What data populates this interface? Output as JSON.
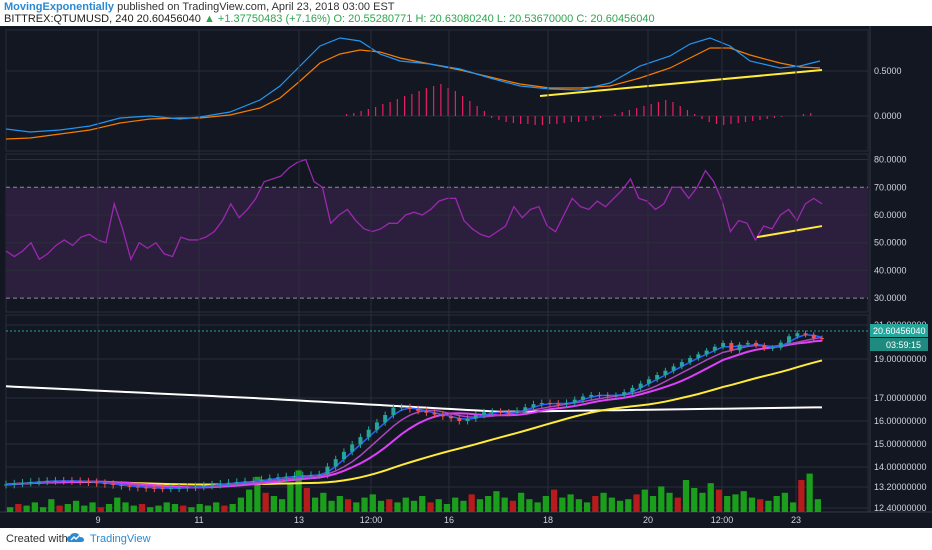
{
  "header": {
    "author": "MovingExponentially",
    "published": "published on TradingView.com, April 23, 2018 03:00 EST",
    "symbol": "BITTREX:QTUMUSD, 240",
    "last": "20.60456040",
    "change": "+1.37750483 (+7.16%)",
    "open": "O: 20.55280771",
    "high": "H: 20.63080240",
    "low": "L: 20.53670000",
    "close": "C: 20.60456040"
  },
  "footer": {
    "created_with": "Created with",
    "brand": "TradingView"
  },
  "colors": {
    "background": "#131722",
    "grid": "#2a2e39",
    "axis_text": "#d1d4dc",
    "macd_line": "#2196f3",
    "signal_line": "#f57c00",
    "histogram": "#e91e63",
    "rsi": "#9c27b0",
    "rsi_band": "#2c1f3d",
    "trendline": "#ffeb3b",
    "up": "#26a69a",
    "down": "#ef5350",
    "ema_fast": "#2962ff",
    "ema_mid": "#ab47bc",
    "ema_slow": "#e040fb",
    "sma_mid": "#ffeb3b",
    "sma_long": "#ffffff",
    "vol_up": "#1b9e1b",
    "vol_down": "#b71c1c",
    "price_badge": "#26a69a"
  },
  "chart_data": [
    {
      "type": "line",
      "panel": "MACD",
      "y_ticks": [
        "0.5000",
        "0.0000"
      ],
      "series": [],
      "note_visible": "MACD line, signal line, histogram and rising trendline"
    },
    {
      "type": "line",
      "panel": "RSI",
      "y_ticks": [
        "80.0000",
        "70.0000",
        "60.0000",
        "50.0000",
        "40.0000",
        "30.0000"
      ],
      "ylim": [
        25,
        82
      ],
      "bands": [
        30,
        70
      ],
      "series": [
        {
          "values": [
            47,
            45,
            47,
            50,
            44,
            46,
            49,
            51,
            49,
            52,
            53,
            51,
            50,
            64,
            55,
            44,
            50,
            48,
            50,
            46,
            45,
            52,
            51,
            51,
            52,
            54,
            58,
            64,
            59,
            62,
            66,
            72,
            73,
            74,
            77,
            79,
            80,
            72,
            70,
            57,
            60,
            62,
            58,
            55,
            54,
            55,
            57,
            57,
            60,
            61,
            60,
            62,
            65,
            66,
            66,
            58,
            55,
            53,
            52,
            54,
            56,
            63,
            59,
            62,
            63,
            56,
            54,
            60,
            66,
            63,
            62,
            65,
            63,
            66,
            69,
            73,
            66,
            65,
            62,
            64,
            70,
            70,
            66,
            70,
            76,
            72,
            65,
            54,
            58,
            57,
            51,
            56,
            55,
            60,
            62,
            58,
            64,
            66,
            64
          ]
        }
      ]
    },
    {
      "type": "line",
      "panel": "Price",
      "y_ticks": [
        "21.00000000",
        "19.00000000",
        "17.00000000",
        "16.00000000",
        "15.00000000",
        "14.00000000",
        "13.20000000",
        "12.40000000"
      ],
      "x_ticks": [
        "9",
        "11",
        "13",
        "12:00",
        "16",
        "18",
        "20",
        "12:00",
        "23"
      ],
      "last_price_label": "20.60456040",
      "countdown_label": "03:59:15",
      "series": []
    }
  ]
}
